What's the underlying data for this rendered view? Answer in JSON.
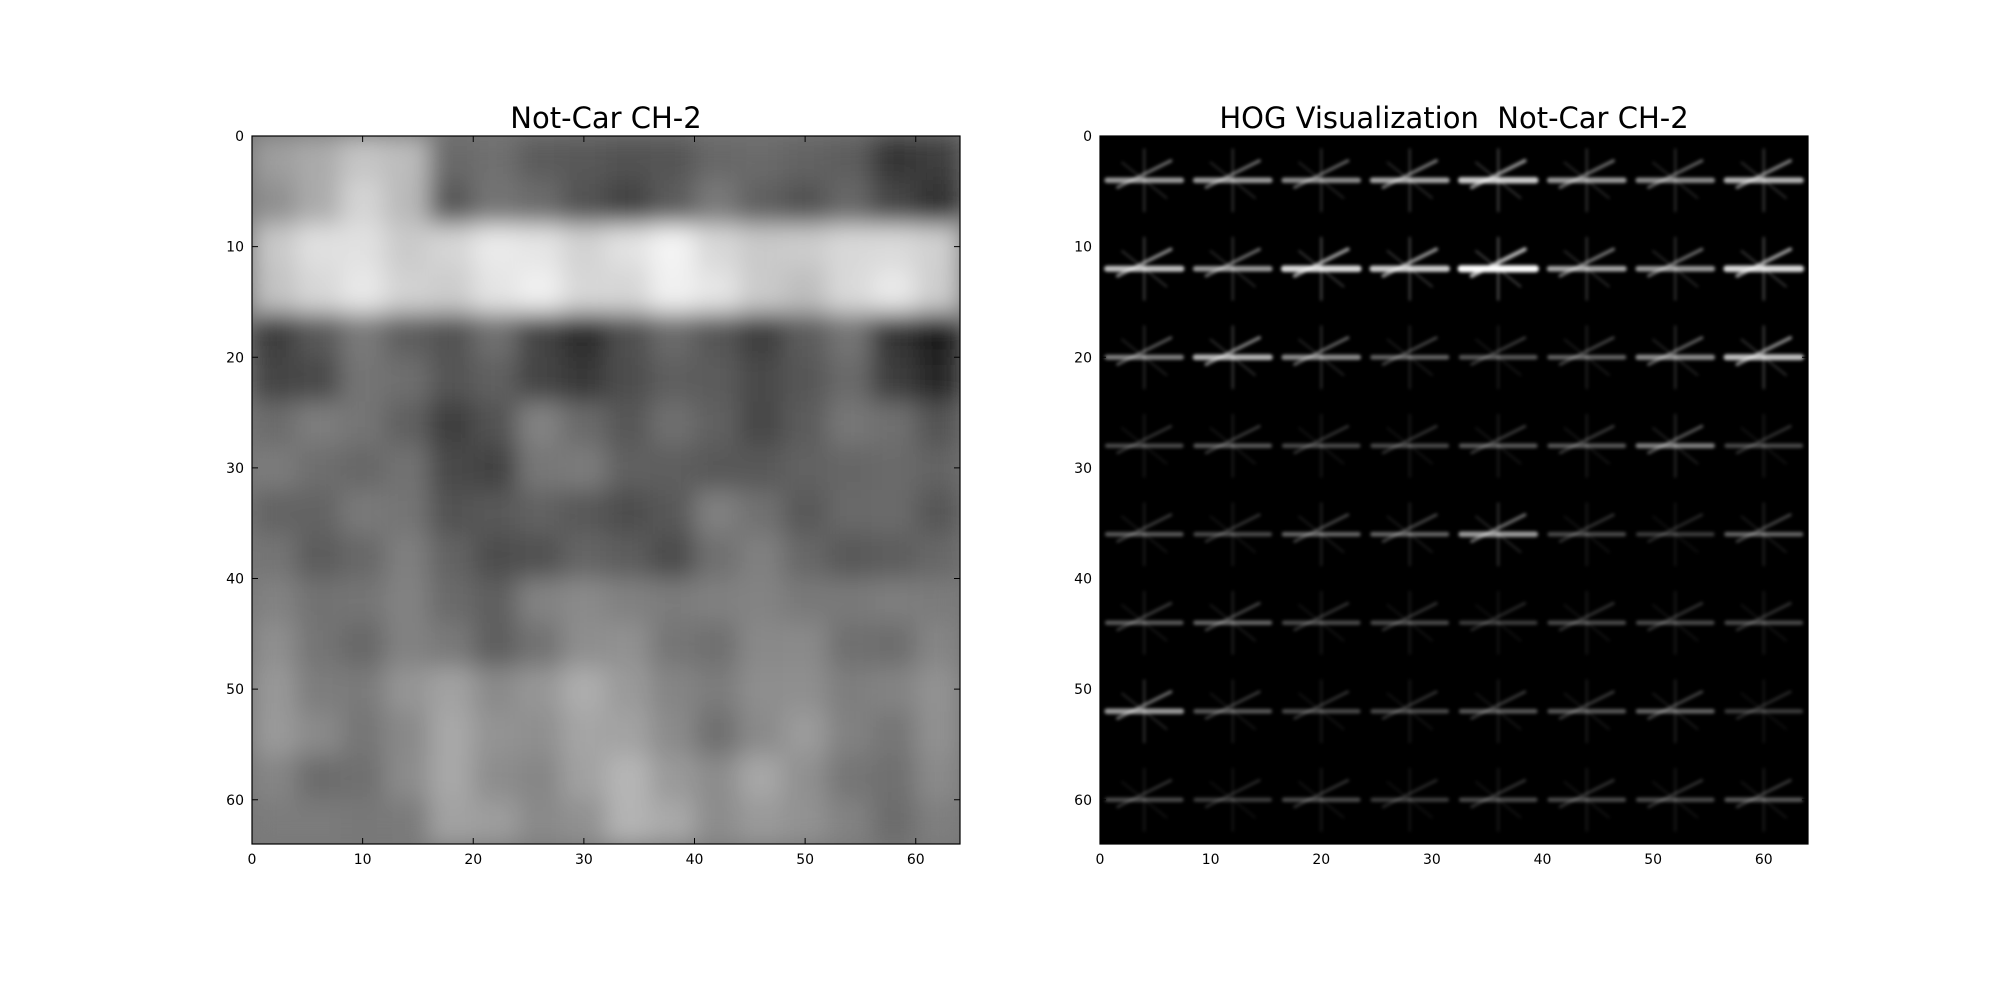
{
  "chart_data": [
    {
      "type": "heatmap",
      "title": "Not-Car CH-2",
      "colormap": "gray",
      "xlim": [
        0,
        64
      ],
      "ylim": [
        64,
        0
      ],
      "x_ticks": [
        0,
        10,
        20,
        30,
        40,
        50,
        60
      ],
      "y_ticks": [
        0,
        10,
        20,
        30,
        40,
        50,
        60
      ],
      "grid_values": [
        [
          0.62,
          0.78,
          0.4,
          0.38,
          0.3,
          0.44,
          0.35,
          0.25
        ],
        [
          0.82,
          0.85,
          0.86,
          0.88,
          0.9,
          0.84,
          0.8,
          0.86
        ],
        [
          0.3,
          0.42,
          0.38,
          0.22,
          0.36,
          0.3,
          0.4,
          0.18
        ],
        [
          0.48,
          0.4,
          0.3,
          0.45,
          0.4,
          0.32,
          0.42,
          0.38
        ],
        [
          0.42,
          0.44,
          0.36,
          0.34,
          0.35,
          0.45,
          0.4,
          0.36
        ],
        [
          0.5,
          0.46,
          0.42,
          0.5,
          0.52,
          0.48,
          0.5,
          0.46
        ],
        [
          0.55,
          0.52,
          0.6,
          0.62,
          0.58,
          0.5,
          0.55,
          0.52
        ],
        [
          0.46,
          0.5,
          0.6,
          0.58,
          0.66,
          0.6,
          0.52,
          0.48
        ]
      ]
    },
    {
      "type": "heatmap",
      "title": "HOG Visualization  Not-Car CH-2",
      "colormap": "gray",
      "xlim": [
        0,
        64
      ],
      "ylim": [
        64,
        0
      ],
      "x_ticks": [
        0,
        10,
        20,
        30,
        40,
        50,
        60
      ],
      "y_ticks": [
        0,
        10,
        20,
        30,
        40,
        50,
        60
      ],
      "cell_strength": [
        [
          0.6,
          0.6,
          0.55,
          0.65,
          0.8,
          0.6,
          0.55,
          0.7
        ],
        [
          0.75,
          0.6,
          0.85,
          0.8,
          1.0,
          0.65,
          0.6,
          0.85
        ],
        [
          0.5,
          0.7,
          0.55,
          0.4,
          0.35,
          0.4,
          0.55,
          0.75
        ],
        [
          0.3,
          0.35,
          0.3,
          0.3,
          0.35,
          0.35,
          0.5,
          0.3
        ],
        [
          0.35,
          0.3,
          0.4,
          0.4,
          0.6,
          0.3,
          0.25,
          0.4
        ],
        [
          0.35,
          0.4,
          0.3,
          0.3,
          0.25,
          0.3,
          0.3,
          0.3
        ],
        [
          0.6,
          0.35,
          0.3,
          0.3,
          0.35,
          0.35,
          0.4,
          0.25
        ],
        [
          0.3,
          0.25,
          0.3,
          0.25,
          0.3,
          0.3,
          0.3,
          0.35
        ]
      ]
    }
  ]
}
